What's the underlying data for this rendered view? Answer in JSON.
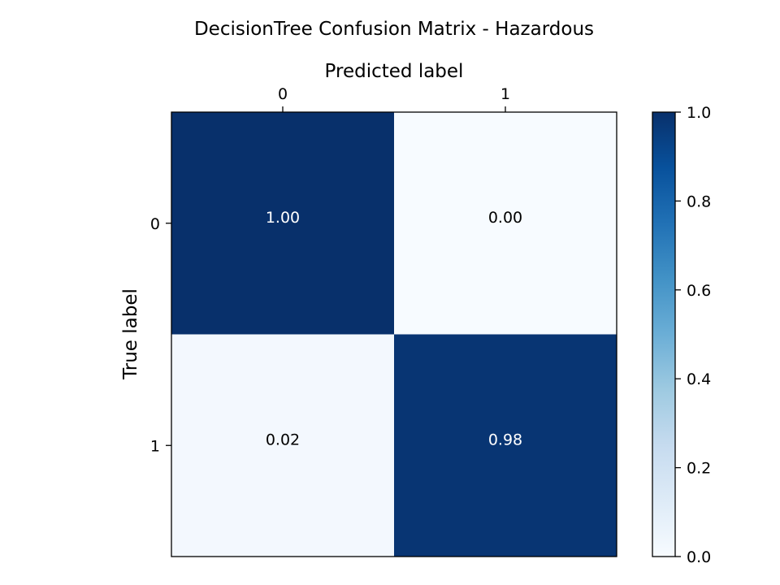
{
  "chart_data": {
    "type": "heatmap",
    "title": "DecisionTree Confusion Matrix - Hazardous",
    "xlabel": "Predicted label",
    "ylabel": "True label",
    "x_categories": [
      "0",
      "1"
    ],
    "y_categories": [
      "0",
      "1"
    ],
    "values": [
      [
        1.0,
        0.0
      ],
      [
        0.02,
        0.98
      ]
    ],
    "value_labels": [
      [
        "1.00",
        "0.00"
      ],
      [
        "0.02",
        "0.98"
      ]
    ],
    "x_axis_position": "top",
    "colormap": "Blues",
    "colorbar": {
      "range": [
        0.0,
        1.0
      ],
      "ticks": [
        0.0,
        0.2,
        0.4,
        0.6,
        0.8,
        1.0
      ],
      "tick_labels": [
        "0.0",
        "0.2",
        "0.4",
        "0.6",
        "0.8",
        "1.0"
      ],
      "placement": "right"
    },
    "grid": false,
    "text_colors": {
      "dark_cell": "#ffffff",
      "light_cell": "#000000"
    }
  }
}
